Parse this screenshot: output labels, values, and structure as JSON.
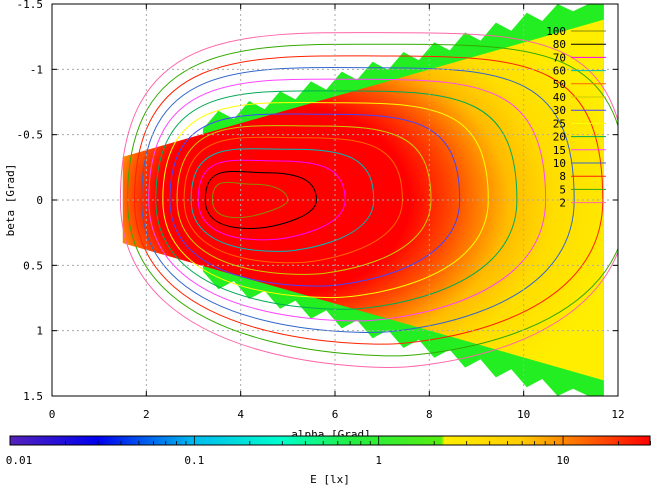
{
  "chart_data": {
    "type": "heatmap",
    "title": "",
    "xlabel": "alpha [Grad]",
    "ylabel": "beta [Grad]",
    "xlim": [
      0,
      12
    ],
    "ylim": [
      1.5,
      -1.5
    ],
    "x_ticks": [
      "0",
      "2",
      "4",
      "6",
      "8",
      "10",
      "12"
    ],
    "x_tick_values": [
      0,
      2,
      4,
      6,
      8,
      10,
      12
    ],
    "y_ticks": [
      "-1.5",
      "-1",
      "-0.5",
      "0",
      "0.5",
      "1",
      "1.5"
    ],
    "y_tick_values": [
      -1.5,
      -1,
      -0.5,
      0,
      0.5,
      1,
      1.5
    ],
    "grid": true,
    "colorbar": {
      "label": "E [lx]",
      "scale": "log",
      "range": [
        0.01,
        30
      ],
      "ticks": [
        "0.01",
        "0.1",
        "1",
        "10"
      ],
      "tick_values": [
        0.01,
        0.1,
        1,
        10
      ],
      "stops": [
        {
          "v": 0.01,
          "color": "#5522bb"
        },
        {
          "v": 0.03,
          "color": "#0000ee"
        },
        {
          "v": 0.1,
          "color": "#00bbee"
        },
        {
          "v": 0.3,
          "color": "#00ffcc"
        },
        {
          "v": 0.7,
          "color": "#22ee44"
        },
        {
          "v": 2.2,
          "color": "#55ee11"
        },
        {
          "v": 2.3,
          "color": "#ffee00"
        },
        {
          "v": 6,
          "color": "#ffcc00"
        },
        {
          "v": 15,
          "color": "#ff5500"
        },
        {
          "v": 30,
          "color": "#ff0000"
        }
      ]
    },
    "contour_levels": [
      {
        "label": "100",
        "value": 100,
        "color": "#8a8a00"
      },
      {
        "label": "80",
        "value": 80,
        "color": "#000000"
      },
      {
        "label": "70",
        "value": 70,
        "color": "#ff00ff"
      },
      {
        "label": "60",
        "value": 60,
        "color": "#00bbbb"
      },
      {
        "label": "50",
        "value": 50,
        "color": "#ff6600"
      },
      {
        "label": "40",
        "value": 40,
        "color": "#cccc00"
      },
      {
        "label": "30",
        "value": 30,
        "color": "#4444ff"
      },
      {
        "label": "25",
        "value": 25,
        "color": "#ffff00"
      },
      {
        "label": "20",
        "value": 20,
        "color": "#00aa55"
      },
      {
        "label": "15",
        "value": 15,
        "color": "#ff44ff"
      },
      {
        "label": "10",
        "value": 10,
        "color": "#3366cc"
      },
      {
        "label": "8",
        "value": 8,
        "color": "#ff2200"
      },
      {
        "label": "5",
        "value": 5,
        "color": "#33aa00"
      },
      {
        "label": "2",
        "value": 2,
        "color": "#ff66aa"
      }
    ],
    "field_extent": {
      "alpha_start": 1.5,
      "alpha_end": 11.7,
      "beta_halfwidth_at_start": 0.33,
      "beta_halfwidth_at_end": 1.5
    },
    "peak": {
      "alpha": 3.8,
      "beta": 0.0
    }
  },
  "colors": {
    "grid": "#aaaaaa",
    "axis": "#000000",
    "background": "#ffffff"
  }
}
